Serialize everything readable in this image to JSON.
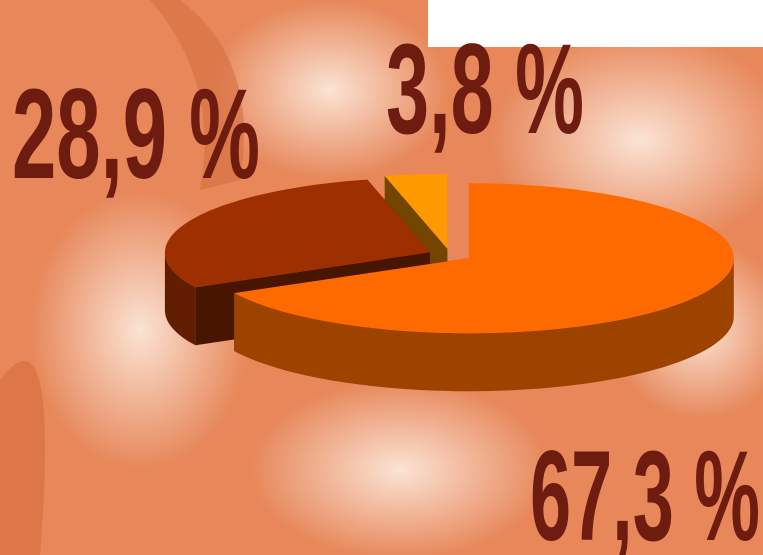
{
  "chart_data": {
    "type": "pie",
    "categories": [
      null,
      null,
      null
    ],
    "values": [
      67.3,
      28.9,
      3.8
    ],
    "value_labels": [
      "67,3 %",
      "28,9 %",
      "3,8 %"
    ],
    "colors": [
      "#ff6a00",
      "#9e2f00",
      "#ff9900"
    ]
  }
}
